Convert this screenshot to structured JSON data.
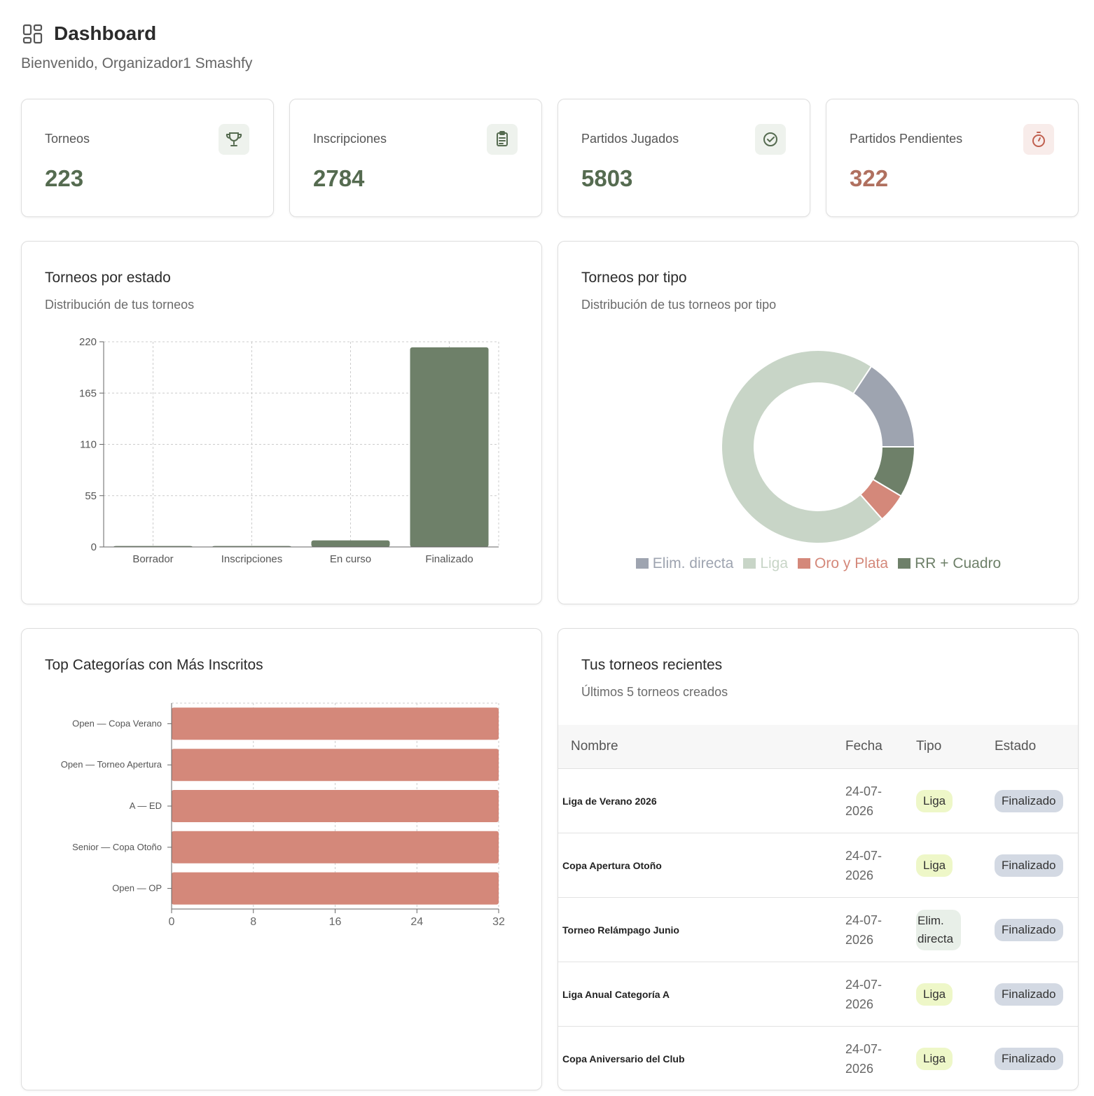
{
  "header": {
    "title": "Dashboard",
    "subtitle": "Bienvenido, Organizador1 Smashfy"
  },
  "stats": [
    {
      "label": "Torneos",
      "value": 223
    },
    {
      "label": "Inscripciones",
      "value": 2784
    },
    {
      "label": "Partidos Jugados",
      "value": 5803
    },
    {
      "label": "Partidos Pendientes",
      "value": 322
    }
  ],
  "chart_data": [
    {
      "type": "bar",
      "title": "Torneos por estado",
      "subtitle": "Distribución de tus torneos",
      "categories": [
        "Borrador",
        "Inscripciones",
        "En curso",
        "Finalizado"
      ],
      "values": [
        1,
        1,
        7,
        214
      ],
      "color": "#6e8069",
      "ylim": [
        0,
        220
      ],
      "yticks": [
        0,
        55,
        110,
        165,
        220
      ],
      "grid": true
    },
    {
      "type": "pie",
      "title": "Torneos por tipo",
      "subtitle": "Distribución de tus torneos por tipo",
      "categories": [
        "Elim. directa",
        "Liga",
        "Oro y Plata",
        "RR + Cuadro"
      ],
      "values": [
        35,
        158,
        11,
        19
      ],
      "colors": [
        "#9ea4b0",
        "#c8d5c7",
        "#d4887a",
        "#6e8069"
      ],
      "donut": true,
      "legend": "bottom"
    },
    {
      "type": "bar",
      "horizontal": true,
      "title": "Top Categorías con Más Inscritos",
      "categories": [
        "Open — Copa Verano",
        "Open — Torneo Apertura",
        "A — ED",
        "Senior — Copa Otoño",
        "Open — OP"
      ],
      "values": [
        32,
        32,
        32,
        32,
        32
      ],
      "color": "#d4887a",
      "xlim": [
        0,
        32
      ],
      "xticks": [
        0,
        8,
        16,
        24,
        32
      ],
      "grid": true
    }
  ],
  "table": {
    "title": "Tus torneos recientes",
    "subtitle": "Últimos 5 torneos creados",
    "columns": [
      "Nombre",
      "Fecha",
      "Tipo",
      "Estado"
    ],
    "rows": [
      [
        "Liga de Verano 2026",
        "24-07-2026",
        "Liga",
        "Finalizado"
      ],
      [
        "Copa Apertura Otoño",
        "24-07-2026",
        "Liga",
        "Finalizado"
      ],
      [
        "Torneo Relámpago Junio",
        "24-07-2026",
        "Elim. directa",
        "Finalizado"
      ],
      [
        "Liga Anual Categoría A",
        "24-07-2026",
        "Liga",
        "Finalizado"
      ],
      [
        "Copa Aniversario del Club",
        "24-07-2026",
        "Liga",
        "Finalizado"
      ]
    ]
  }
}
